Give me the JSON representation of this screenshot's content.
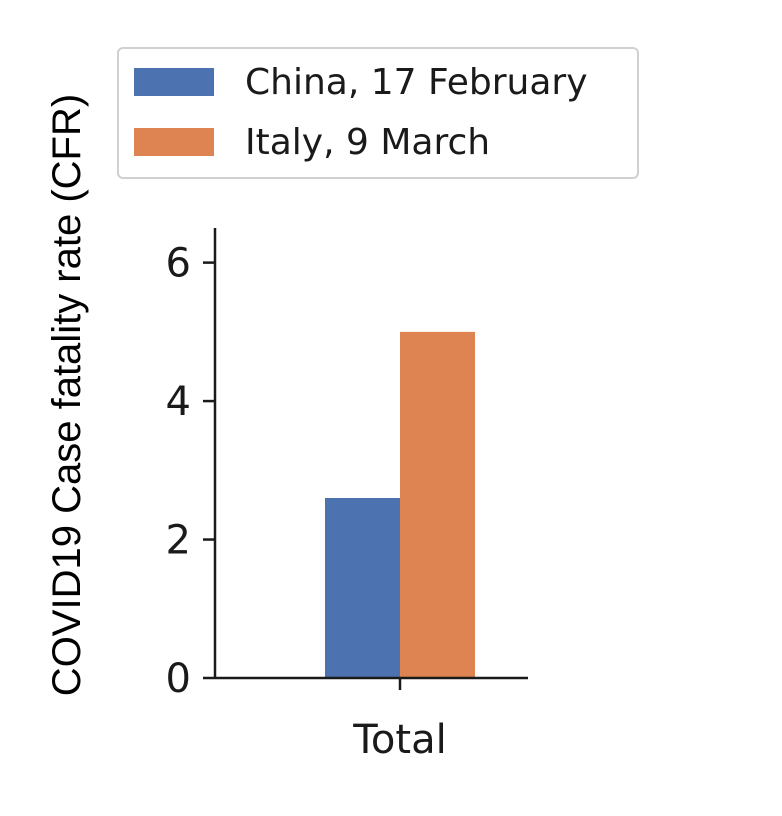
{
  "chart_data": {
    "type": "bar",
    "categories": [
      "Total"
    ],
    "series": [
      {
        "name": "China, 17 February",
        "values": [
          2.6
        ],
        "color": "#4c72b0"
      },
      {
        "name": "Italy, 9 March",
        "values": [
          5.0
        ],
        "color": "#dd8452"
      }
    ],
    "ylabel": "COVID19 Case fatality rate (CFR)",
    "xlabel": "",
    "yticks": [
      0,
      2,
      4,
      6
    ],
    "ylim": [
      0,
      6.5
    ],
    "legend_position": "top",
    "grid": false
  }
}
